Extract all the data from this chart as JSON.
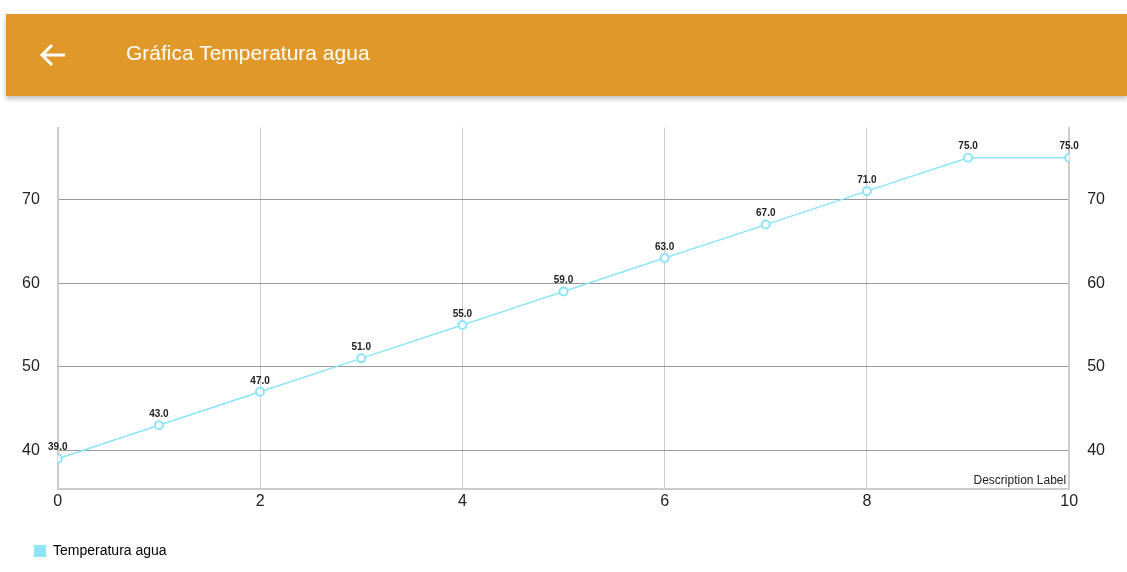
{
  "chart_data": {
    "type": "line",
    "title": "Gráfica Temperatura agua",
    "x": [
      0,
      1,
      2,
      3,
      4,
      5,
      6,
      7,
      8,
      9,
      10
    ],
    "series": [
      {
        "name": "Temperatura agua",
        "color": "#8de4f8",
        "values": [
          39,
          43,
          47,
          51,
          55,
          59,
          63,
          67,
          71,
          75,
          75
        ],
        "value_labels": [
          "39.0",
          "43.0",
          "47.0",
          "51.0",
          "55.0",
          "59.0",
          "63.0",
          "67.0",
          "71.0",
          "75.0",
          "75.0"
        ]
      }
    ],
    "xlim": [
      0,
      10
    ],
    "xticks": [
      0,
      2,
      4,
      6,
      8,
      10
    ],
    "ylim": [
      35.4,
      78.6
    ],
    "yticks": [
      40,
      50,
      60,
      70
    ],
    "y2lim": [
      35.4,
      78.6
    ],
    "y2ticks": [
      40,
      50,
      60,
      70
    ],
    "grid": true,
    "legend": "bottom left",
    "marker": "circle",
    "line_style": "solid",
    "annotations": [
      "Description Label"
    ]
  }
}
